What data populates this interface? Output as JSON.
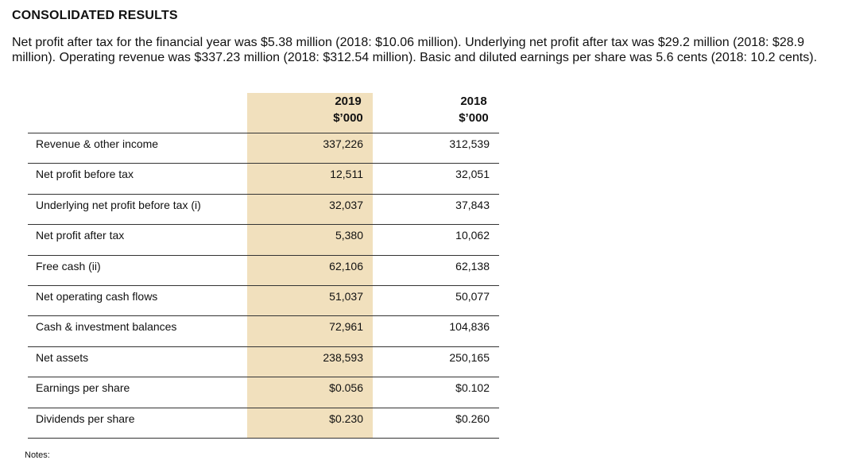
{
  "document": {
    "heading": "CONSOLIDATED RESULTS",
    "intro": "Net profit after tax for the financial year was $5.38 million (2018: $10.06 million). Underlying net profit after tax was $29.2 million (2018: $28.9 million). Operating revenue was $337.23 million (2018: $312.54 million). Basic and diluted earnings per share was 5.6 cents (2018: 10.2 cents).",
    "notes_label": "Notes:"
  },
  "table": {
    "columns": [
      {
        "year": "2019",
        "unit": "$’000"
      },
      {
        "year": "2018",
        "unit": "$’000"
      }
    ],
    "rows": [
      {
        "label": "Revenue & other income",
        "v2019": "337,226",
        "v2018": "312,539"
      },
      {
        "label": "Net profit before tax",
        "v2019": "12,511",
        "v2018": "32,051"
      },
      {
        "label": "Underlying net profit before tax (i)",
        "v2019": "32,037",
        "v2018": "37,843"
      },
      {
        "label": "Net profit after tax",
        "v2019": "5,380",
        "v2018": "10,062"
      },
      {
        "label": "Free cash (ii)",
        "v2019": "62,106",
        "v2018": "62,138"
      },
      {
        "label": "Net operating cash flows",
        "v2019": "51,037",
        "v2018": "50,077"
      },
      {
        "label": "Cash & investment balances",
        "v2019": "72,961",
        "v2018": "104,836"
      },
      {
        "label": "Net assets",
        "v2019": "238,593",
        "v2018": "250,165"
      },
      {
        "label": "Earnings per share",
        "v2019": "$0.056",
        "v2018": "$0.102"
      },
      {
        "label": "Dividends per share",
        "v2019": "$0.230",
        "v2018": "$0.260"
      }
    ]
  },
  "colors": {
    "highlight": "#f1e0bd",
    "rule": "#333333",
    "text": "#111111"
  }
}
